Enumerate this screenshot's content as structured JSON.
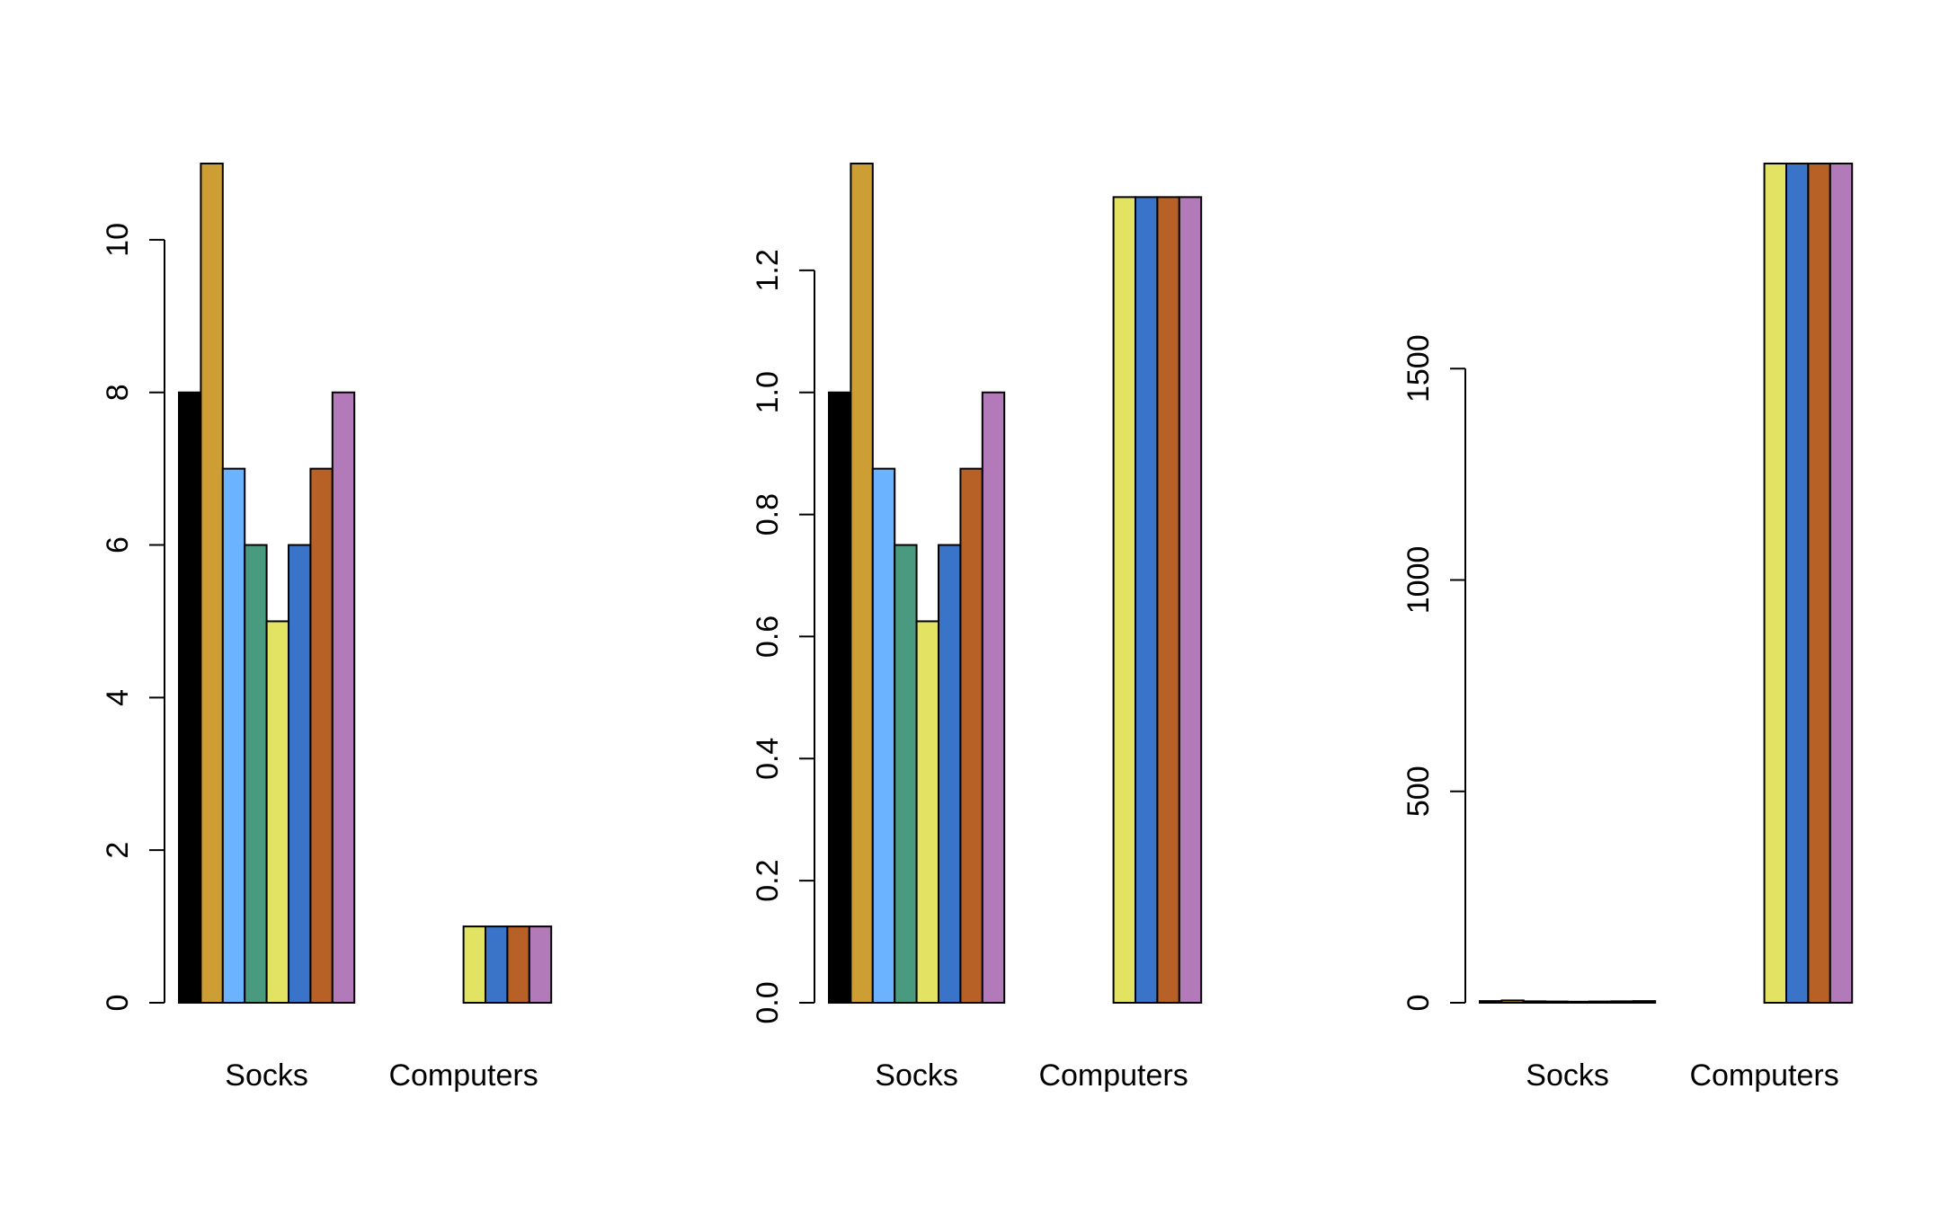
{
  "chart_data": [
    {
      "type": "bar",
      "grouped": true,
      "categories": [
        "Socks",
        "Computers"
      ],
      "series": [
        {
          "color": "#000000",
          "values": [
            8,
            0
          ]
        },
        {
          "color": "#CC9E33",
          "values": [
            11,
            0
          ]
        },
        {
          "color": "#6BB3FF",
          "values": [
            7,
            0
          ]
        },
        {
          "color": "#4A9A80",
          "values": [
            6,
            0
          ]
        },
        {
          "color": "#E2E263",
          "values": [
            5,
            1
          ]
        },
        {
          "color": "#3A74C9",
          "values": [
            6,
            1
          ]
        },
        {
          "color": "#B86127",
          "values": [
            7,
            1
          ]
        },
        {
          "color": "#B27AB8",
          "values": [
            8,
            1
          ]
        }
      ],
      "ylim": [
        0,
        11
      ],
      "yticks": [
        0,
        2,
        4,
        6,
        8,
        10
      ],
      "ytick_labels": [
        "0",
        "2",
        "4",
        "6",
        "8",
        "10"
      ],
      "xlabel": "",
      "ylabel": ""
    },
    {
      "type": "bar",
      "grouped": true,
      "categories": [
        "Socks",
        "Computers"
      ],
      "series": [
        {
          "color": "#000000",
          "values": [
            1.0,
            0
          ]
        },
        {
          "color": "#CC9E33",
          "values": [
            1.375,
            0
          ]
        },
        {
          "color": "#6BB3FF",
          "values": [
            0.875,
            0
          ]
        },
        {
          "color": "#4A9A80",
          "values": [
            0.75,
            0
          ]
        },
        {
          "color": "#E2E263",
          "values": [
            0.625,
            1.32
          ]
        },
        {
          "color": "#3A74C9",
          "values": [
            0.75,
            1.32
          ]
        },
        {
          "color": "#B86127",
          "values": [
            0.875,
            1.32
          ]
        },
        {
          "color": "#B27AB8",
          "values": [
            1.0,
            1.32
          ]
        }
      ],
      "ylim": [
        0,
        1.375
      ],
      "yticks": [
        0,
        0.2,
        0.4,
        0.6,
        0.8,
        1.0,
        1.2
      ],
      "ytick_labels": [
        "0.0",
        "0.2",
        "0.4",
        "0.6",
        "0.8",
        "1.0",
        "1.2"
      ],
      "xlabel": "",
      "ylabel": ""
    },
    {
      "type": "bar",
      "grouped": true,
      "categories": [
        "Socks",
        "Computers"
      ],
      "series": [
        {
          "color": "#000000",
          "values": [
            4,
            0
          ]
        },
        {
          "color": "#CC9E33",
          "values": [
            5.5,
            0
          ]
        },
        {
          "color": "#6BB3FF",
          "values": [
            3.5,
            0
          ]
        },
        {
          "color": "#4A9A80",
          "values": [
            3,
            0
          ]
        },
        {
          "color": "#E2E263",
          "values": [
            2.5,
            1985
          ]
        },
        {
          "color": "#3A74C9",
          "values": [
            3,
            1985
          ]
        },
        {
          "color": "#B86127",
          "values": [
            3.5,
            1985
          ]
        },
        {
          "color": "#B27AB8",
          "values": [
            4,
            1985
          ]
        }
      ],
      "ylim": [
        0,
        1985
      ],
      "yticks": [
        0,
        500,
        1000,
        1500
      ],
      "ytick_labels": [
        "0",
        "500",
        "1000",
        "1500"
      ],
      "xlabel": "",
      "ylabel": ""
    }
  ]
}
